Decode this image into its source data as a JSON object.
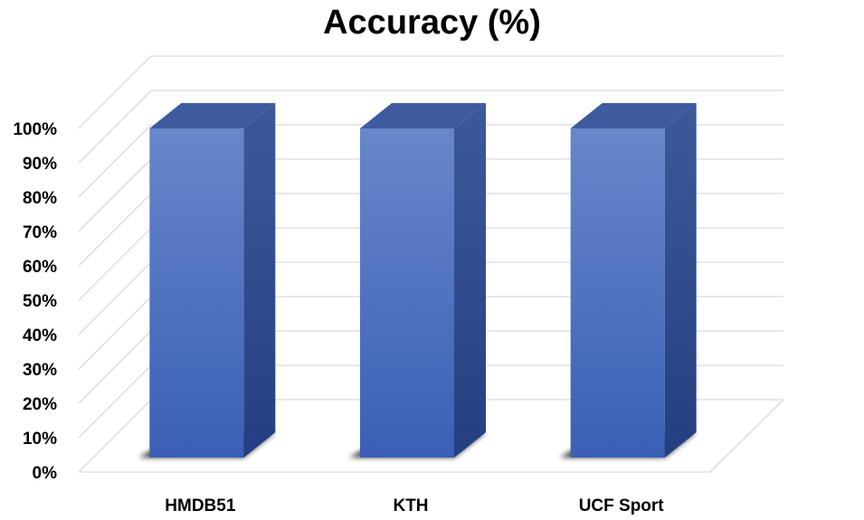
{
  "chart_data": {
    "type": "bar",
    "title": "Accuracy (%)",
    "categories": [
      "HMDB51",
      "KTH",
      "UCF Sport"
    ],
    "series": [
      {
        "values": [
          100,
          100,
          100
        ]
      }
    ],
    "ylim": [
      0,
      100
    ],
    "yticks": [
      "0%",
      "10%",
      "20%",
      "30%",
      "40%",
      "50%",
      "60%",
      "70%",
      "80%",
      "90%",
      "100%"
    ],
    "xlabel": "",
    "ylabel": "",
    "grid": true,
    "style": "3d-column",
    "colors": {
      "bar_front": "#4a6fc0",
      "bar_side": "#2f4a8a",
      "bar_top": "#3d5b9e",
      "grid": "#d9d9d9"
    }
  }
}
